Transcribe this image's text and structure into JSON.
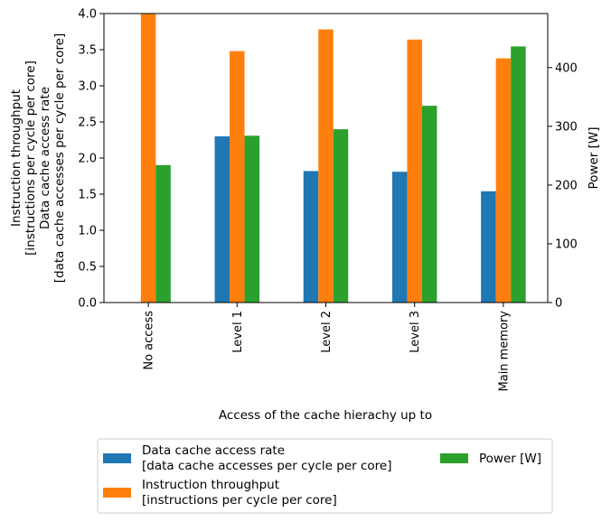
{
  "chart_data": {
    "type": "bar",
    "categories": [
      "No access",
      "Level 1",
      "Level 2",
      "Level 3",
      "Main memory"
    ],
    "xlabel": "Access of the cache hierachy up to",
    "ylabel_left": [
      "Instruction throughput",
      "[instructions per cycle per core]",
      "Data cache access rate",
      "[data cache accesses per cycle per core]"
    ],
    "ylabel_right": "Power [W]",
    "ylim_left": [
      0,
      4.0
    ],
    "ylim_right": [
      0,
      492
    ],
    "yticks_left": [
      "0.0",
      "0.5",
      "1.0",
      "1.5",
      "2.0",
      "2.5",
      "3.0",
      "3.5",
      "4.0"
    ],
    "yticks_right": [
      "0",
      "100",
      "200",
      "300",
      "400"
    ],
    "series": [
      {
        "name": "Data cache access rate",
        "name_line2": "[data cache accesses per cycle per core]",
        "axis": "left",
        "color": "#1f77b4",
        "values": [
          0.0,
          2.3,
          1.82,
          1.81,
          1.54
        ]
      },
      {
        "name": "Instruction throughput",
        "name_line2": "[instructions per cycle per core]",
        "axis": "left",
        "color": "#ff7f0e",
        "values": [
          4.0,
          3.48,
          3.78,
          3.64,
          3.38
        ]
      },
      {
        "name": "Power [W]",
        "axis": "right",
        "color": "#2ca02c",
        "values": [
          234,
          284,
          295,
          335,
          436
        ]
      }
    ],
    "legend_position": "bottom"
  }
}
